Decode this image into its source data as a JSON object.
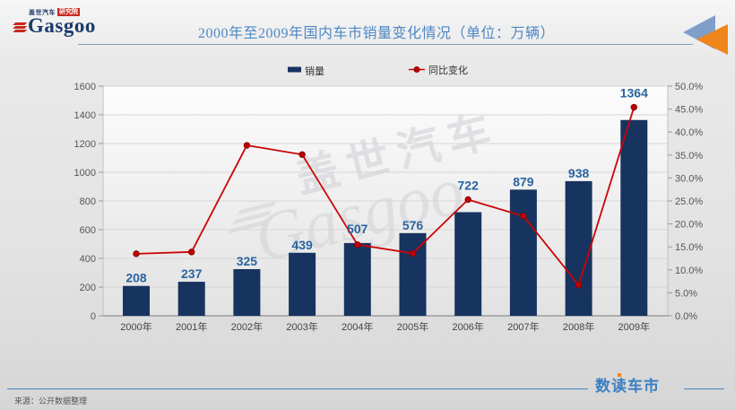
{
  "header": {
    "logo": {
      "tagline_cn": "盖世汽车",
      "badge": "研究院",
      "brand": "Gasgoo"
    },
    "title": "2000年至2009年国内车市销量变化情况（单位：万辆）"
  },
  "watermark": {
    "line1": "盖世汽车",
    "line2": "Gasgoo"
  },
  "chart_data": {
    "type": "bar",
    "title": "2000年至2009年国内车市销量变化情况（单位：万辆）",
    "unit": "万辆",
    "categories": [
      "2000年",
      "2001年",
      "2002年",
      "2003年",
      "2004年",
      "2005年",
      "2006年",
      "2007年",
      "2008年",
      "2009年"
    ],
    "series": [
      {
        "name": "销量",
        "type": "bar",
        "axis": "left",
        "values": [
          208,
          237,
          325,
          439,
          507,
          576,
          722,
          879,
          938,
          1364
        ]
      },
      {
        "name": "同比变化",
        "type": "line",
        "axis": "right",
        "values_pct": [
          13.5,
          13.9,
          37.1,
          35.1,
          15.5,
          13.6,
          25.3,
          21.7,
          6.7,
          45.4
        ]
      }
    ],
    "left_axis": {
      "min": 0,
      "max": 1600,
      "step": 200,
      "ticks": [
        "0",
        "200",
        "400",
        "600",
        "800",
        "1000",
        "1200",
        "1400",
        "1600"
      ]
    },
    "right_axis": {
      "min": 0,
      "max": 50,
      "step": 5,
      "ticks": [
        "0.0%",
        "5.0%",
        "10.0%",
        "15.0%",
        "20.0%",
        "25.0%",
        "30.0%",
        "35.0%",
        "40.0%",
        "45.0%",
        "50.0%"
      ]
    },
    "grid": true,
    "legend_position": "top",
    "bar_labels_shown": true
  },
  "footer": {
    "source": "来源：公开数据整理",
    "brand": "数读车市"
  },
  "colors": {
    "bar": "#17335f",
    "line": "#cc0505",
    "line_dot": "#c00000",
    "value_label": "#2a64a0",
    "title_blue": "#4e88c3",
    "header_rule": "#7e9fc7",
    "footer_rule": "#4a86c4",
    "arrow_blue": "#7f9fca",
    "arrow_orange": "#f08519",
    "brand_navy": "#1b3a6b",
    "brand_red": "#c8281e",
    "footer_brand_blue": "#3a7fc1",
    "axis_text": "#555555",
    "watermark_gray": "#cfd2d6"
  }
}
